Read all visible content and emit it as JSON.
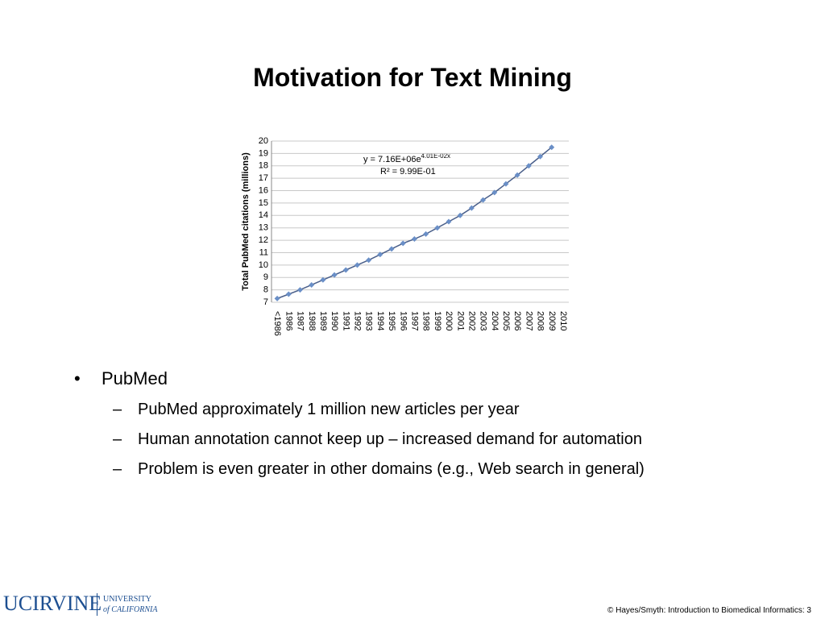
{
  "slide": {
    "title": "Motivation for Text Mining",
    "bullets": [
      "PubMed"
    ],
    "sub_bullets": [
      "PubMed approximately 1 million new articles per year",
      "Human annotation cannot keep up – increased demand for automation",
      "Problem is even greater in other domains (e.g., Web search in general)"
    ],
    "footer": "© Hayes/Smyth: Introduction to Biomedical Informatics: 3",
    "logo": {
      "name": "UCIRVINE",
      "line1": "UNIVERSITY",
      "line2": "of CALIFORNIA"
    }
  },
  "chart_data": {
    "type": "line",
    "y_label": "Total PubMed citations (millions)",
    "annotations": [
      "y = 7.16E+06e",
      "4.01E-02x",
      "R² = 9.99E-01"
    ],
    "categories": [
      "<1986",
      "1986",
      "1987",
      "1988",
      "1989",
      "1990",
      "1991",
      "1992",
      "1993",
      "1994",
      "1995",
      "1996",
      "1997",
      "1998",
      "1999",
      "2000",
      "2001",
      "2002",
      "2003",
      "2004",
      "2005",
      "2006",
      "2007",
      "2008",
      "2009",
      "2010"
    ],
    "series": [
      {
        "color": "#6a8fc7",
        "values": [
          7.3,
          7.65,
          8.0,
          8.4,
          8.8,
          9.2,
          9.6,
          10.0,
          10.4,
          10.85,
          11.3,
          11.75,
          12.1,
          12.5,
          13.0,
          13.5,
          14.0,
          14.6,
          15.25,
          15.85,
          16.55,
          17.25,
          18.0,
          18.75,
          19.5,
          null
        ]
      }
    ],
    "ylim": [
      7,
      20
    ],
    "yticks": [
      7,
      8,
      9,
      10,
      11,
      12,
      13,
      14,
      15,
      16,
      17,
      18,
      19,
      20
    ],
    "grid": true
  }
}
